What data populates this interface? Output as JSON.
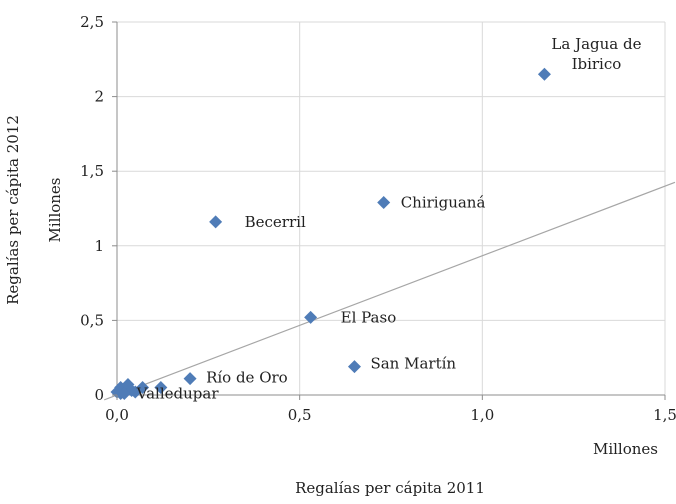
{
  "chart_data": {
    "type": "scatter",
    "title": "",
    "xlabel": "Regalías per cápita 2011",
    "xunit": "Millones",
    "ylabel": "Regalías per cápita 2012",
    "yunit": "Millones",
    "xlim": [
      0,
      1.5
    ],
    "ylim": [
      0,
      2.5
    ],
    "xticks": [
      0,
      0.5,
      1.0,
      1.5
    ],
    "xtick_labels": [
      "0,0",
      "0,5",
      "1,0",
      "1,5"
    ],
    "yticks": [
      0,
      0.5,
      1,
      1.5,
      2,
      2.5
    ],
    "ytick_labels": [
      "0",
      "0,5",
      "1",
      "1,5",
      "2",
      "2,5"
    ],
    "grid": true,
    "marker_color": "#4F7CB7",
    "line_color": "#A6A6A6",
    "reference_line": {
      "from": [
        0,
        0
      ],
      "to": [
        1.5,
        1.4
      ]
    },
    "points": [
      {
        "x": 1.17,
        "y": 2.15,
        "label": "La Jagua de\nIbirico"
      },
      {
        "x": 0.73,
        "y": 1.29,
        "label": "Chiriguaná"
      },
      {
        "x": 0.27,
        "y": 1.16,
        "label": "Becerril"
      },
      {
        "x": 0.53,
        "y": 0.52,
        "label": "El Paso"
      },
      {
        "x": 0.65,
        "y": 0.19,
        "label": "San Martín"
      },
      {
        "x": 0.2,
        "y": 0.11,
        "label": "Río de Oro"
      },
      {
        "x": 0.01,
        "y": 0.01,
        "label": "Valledupar"
      },
      {
        "x": 0.12,
        "y": 0.05,
        "label": ""
      },
      {
        "x": 0.07,
        "y": 0.05,
        "label": ""
      },
      {
        "x": 0.03,
        "y": 0.07,
        "label": ""
      },
      {
        "x": 0.02,
        "y": 0.04,
        "label": ""
      },
      {
        "x": 0.01,
        "y": 0.05,
        "label": ""
      },
      {
        "x": 0.04,
        "y": 0.03,
        "label": ""
      },
      {
        "x": 0.02,
        "y": 0.01,
        "label": ""
      },
      {
        "x": 0.0,
        "y": 0.02,
        "label": ""
      },
      {
        "x": 0.05,
        "y": 0.02,
        "label": ""
      }
    ]
  }
}
